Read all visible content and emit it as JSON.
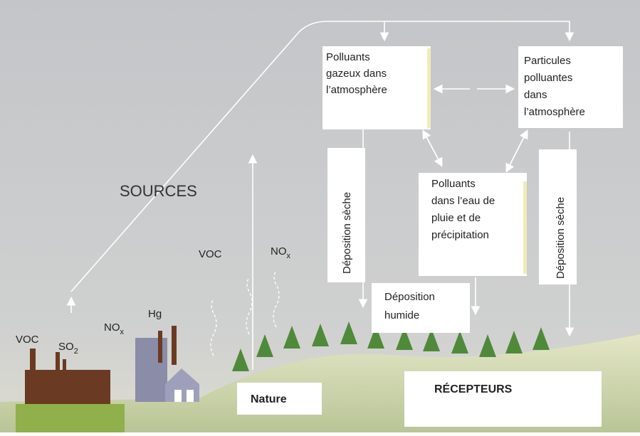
{
  "sources": {
    "title": "SOURCES",
    "left": {
      "voc": "VOC",
      "so2": {
        "main": "SO",
        "sub": "2"
      },
      "nox": {
        "main": "NO",
        "sub": "x"
      },
      "hg": "Hg"
    },
    "middle": {
      "voc": "VOC",
      "nox": {
        "main": "NO",
        "sub": "x"
      }
    }
  },
  "boxes": {
    "gaseous": {
      "lines": [
        "Polluants",
        "gazeux dans",
        "l’atmosphère"
      ]
    },
    "particles": {
      "lines": [
        "Particules",
        "polluantes",
        "dans",
        "l’atmosphère"
      ]
    },
    "rain": {
      "lines": [
        "Polluants",
        "dans l’eau de",
        "pluie et de",
        "précipitation"
      ]
    },
    "dry_left": "Déposition sèche",
    "dry_right": "Déposition  sèche",
    "wet": {
      "lines": [
        "Déposition",
        "humide"
      ]
    }
  },
  "nature": "Nature",
  "receptors": "RÉCEPTEURS"
}
